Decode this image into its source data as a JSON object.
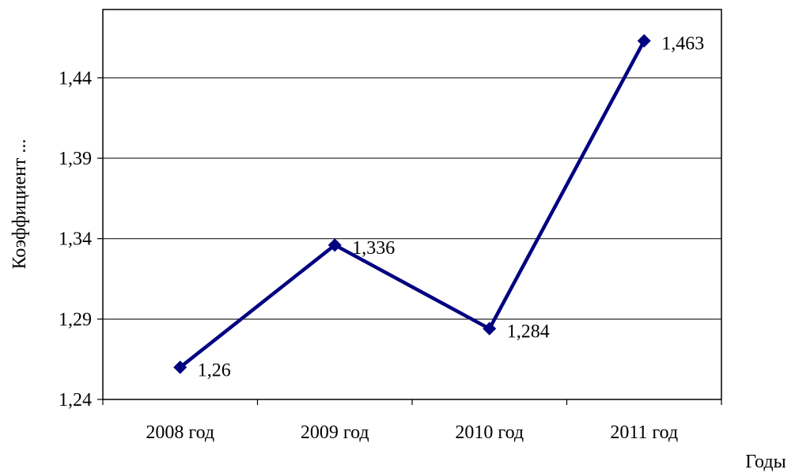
{
  "chart_data": {
    "type": "line",
    "categories": [
      "2008 год",
      "2009 год",
      "2010 год",
      "2011 год"
    ],
    "series": [
      {
        "values": [
          1.26,
          1.336,
          1.284,
          1.463
        ],
        "color": "#000080",
        "marker": "diamond"
      }
    ],
    "data_labels": [
      "1,26",
      "1,336",
      "1,284",
      "1,463"
    ],
    "y_ticks": [
      1.24,
      1.29,
      1.34,
      1.39,
      1.44
    ],
    "y_tick_labels": [
      "1,24",
      "1,29",
      "1,34",
      "1,39",
      "1,44"
    ],
    "ylim": [
      1.24,
      1.4825
    ],
    "xlabel": "Годы",
    "ylabel": "Коэффициент ...",
    "grid": true,
    "legend": "none"
  }
}
